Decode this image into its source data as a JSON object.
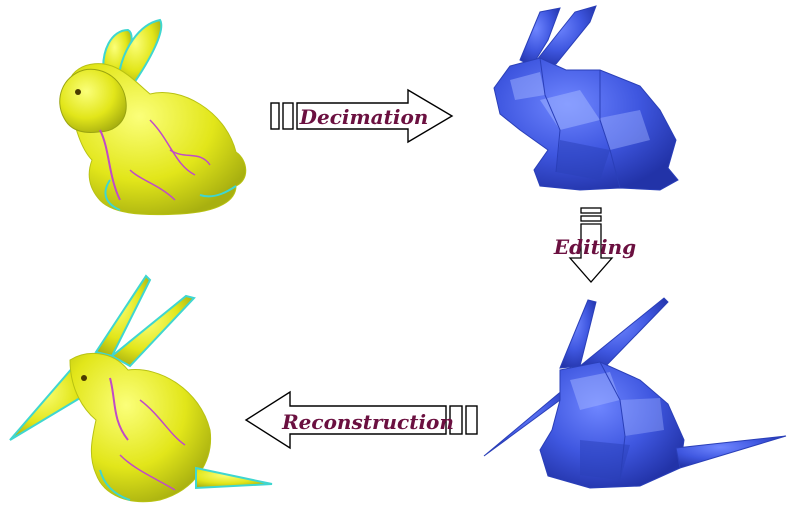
{
  "steps": {
    "decimation": "Decimation",
    "editing": "Editing",
    "reconstruction": "Reconstruction"
  },
  "colors": {
    "detailed_mesh": "#e6ea1c",
    "detailed_highlight": "#3fd6d0",
    "detailed_crease": "#c04ac8",
    "coarse_mesh": "#3f57e0",
    "coarse_shade": "#2a3fb8",
    "coarse_highlight": "#9fb2ff",
    "label": "#6b1040"
  },
  "panels": {
    "top_left": "original-detailed-bunny",
    "top_right": "decimated-coarse-bunny",
    "bottom_right": "edited-coarse-bunny",
    "bottom_left": "reconstructed-detailed-bunny"
  }
}
